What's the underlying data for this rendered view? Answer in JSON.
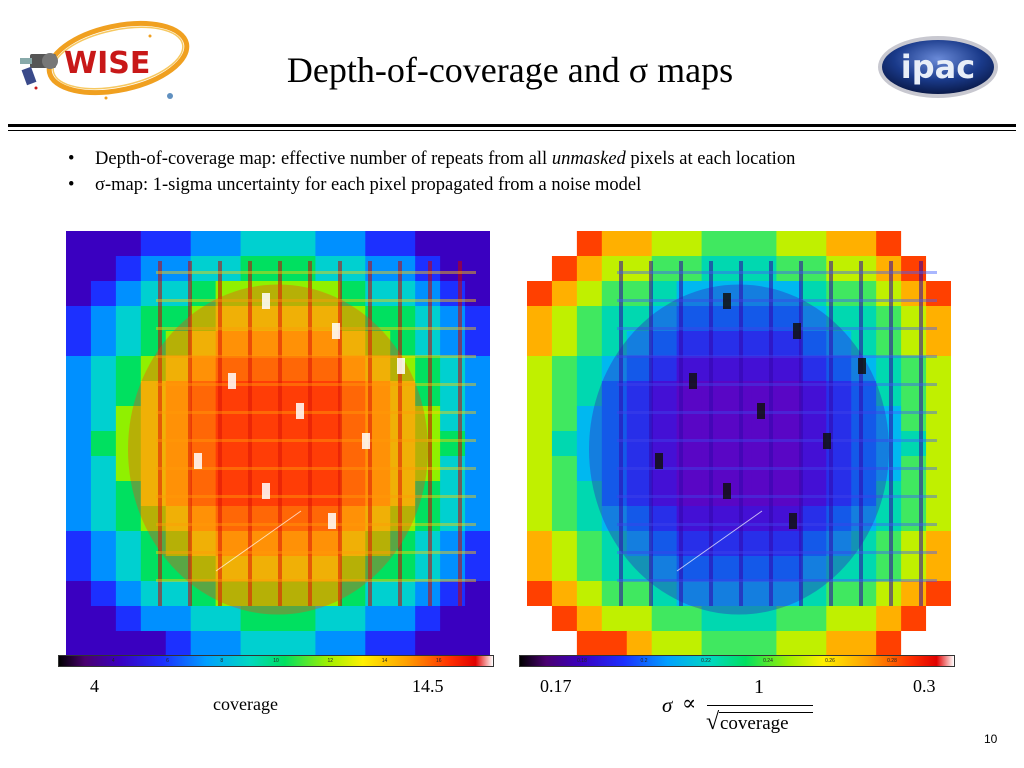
{
  "header": {
    "title": "Depth-of-coverage and σ maps",
    "logo_left_text": "WISE",
    "logo_right_text": "ipac"
  },
  "bullets": [
    {
      "glyph": "•",
      "parts": [
        {
          "text": "Depth-of-coverage map: effective number of repeats from all ",
          "italic": false
        },
        {
          "text": "unmasked",
          "italic": true
        },
        {
          "text": " pixels at each location",
          "italic": false
        }
      ]
    },
    {
      "glyph": "•",
      "parts": [
        {
          "text": "σ-map: 1-sigma uncertainty for each pixel propagated from a noise model",
          "italic": false
        }
      ]
    }
  ],
  "coverage_panel": {
    "min_label": "4",
    "max_label": "14.5",
    "axis_label": "coverage",
    "colorbar_ticks": [
      "4",
      "6",
      "8",
      "10",
      "12",
      "14",
      "16"
    ]
  },
  "sigma_panel": {
    "min_label": "0.17",
    "max_label": "0.3",
    "colorbar_ticks": [
      "0.18",
      "0.2",
      "0.22",
      "0.24",
      "0.26",
      "0.28"
    ],
    "formula": {
      "symbol": "σ",
      "relation": "∝",
      "numerator": "1",
      "radical": "√",
      "denominator": "coverage"
    }
  },
  "palette": {
    "wise_orange": "#f0a020",
    "wise_red": "#c81818",
    "ipac_blue": "#1a3a8a"
  },
  "page_number": "10"
}
